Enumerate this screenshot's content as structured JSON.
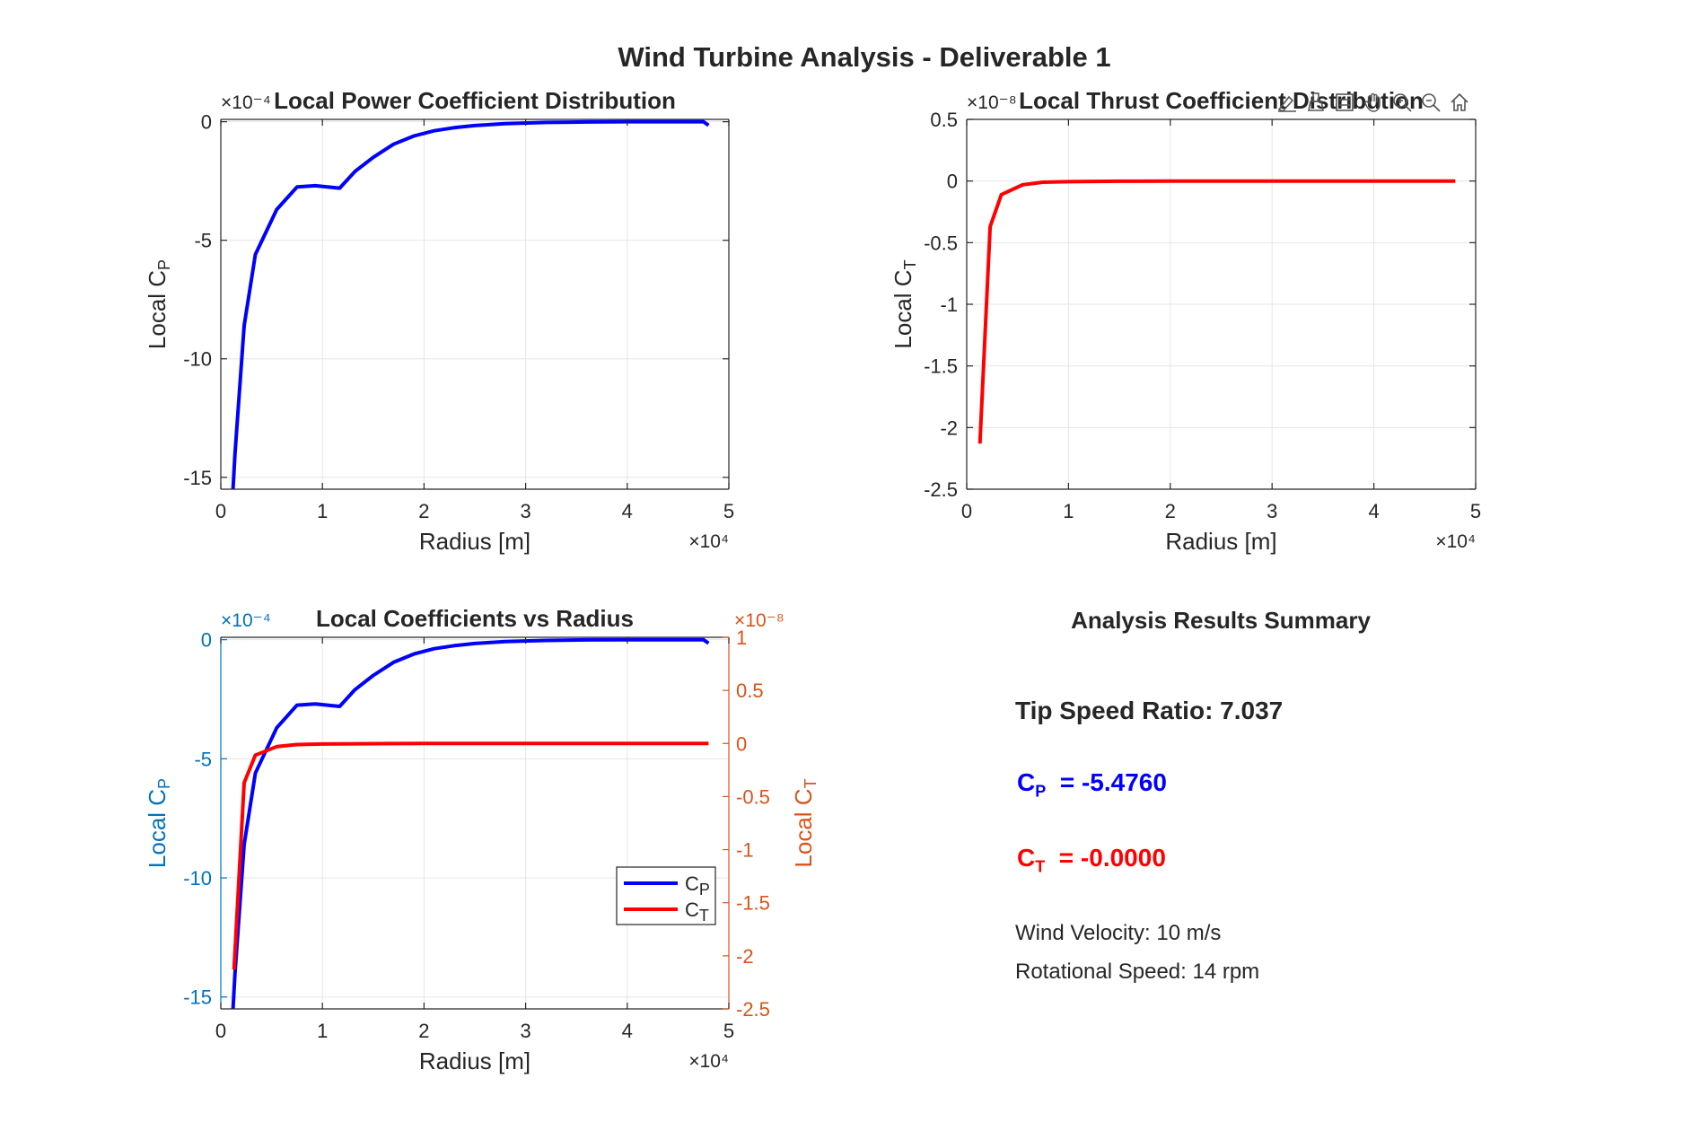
{
  "figure": {
    "suptitle": "Wind Turbine Analysis - Deliverable 1"
  },
  "toolbar": {
    "icons": [
      "data-tips-icon",
      "brush-icon",
      "legend-icon",
      "pan-icon",
      "zoom-in-icon",
      "zoom-out-icon",
      "home-icon"
    ]
  },
  "colors": {
    "cp": "#0000ff",
    "ct": "#ff0000",
    "left_axis": "#0072bd",
    "right_axis": "#d95319",
    "grid": "#e6e6e6",
    "axes": "#262626"
  },
  "chart_data": [
    {
      "type": "line",
      "title": "Local Power Coefficient Distribution",
      "xlabel": "Radius [m]",
      "ylabel": "Local  C_P",
      "x_exponent": "×10⁴",
      "y_exponent": "×10⁻⁴",
      "xlim": [
        0,
        50000
      ],
      "ylim": [
        -15.5,
        0.1
      ],
      "xticks": [
        0,
        10000,
        20000,
        30000,
        40000,
        50000
      ],
      "xtick_labels": [
        "0",
        "1",
        "2",
        "3",
        "4",
        "5"
      ],
      "yticks": [
        0,
        -5,
        -10,
        -15
      ],
      "ytick_labels": [
        "0",
        "-5",
        "-10",
        "-15"
      ],
      "grid": true,
      "series": [
        {
          "color": "#0000ff",
          "x": [
            1200,
            1400,
            2300,
            3400,
            5500,
            7500,
            9300,
            11700,
            13200,
            15000,
            17000,
            19000,
            21000,
            23000,
            25000,
            28000,
            32000,
            36000,
            40000,
            44000,
            47500,
            48000
          ],
          "y": [
            -15.5,
            -14.0,
            -8.6,
            -5.6,
            -3.7,
            -2.75,
            -2.7,
            -2.8,
            -2.1,
            -1.5,
            -0.95,
            -0.6,
            -0.38,
            -0.25,
            -0.16,
            -0.08,
            -0.03,
            -0.01,
            0.0,
            0.0,
            0.0,
            -0.15
          ]
        }
      ]
    },
    {
      "type": "line",
      "title": "Local Thrust Coefficient Distribution",
      "xlabel": "Radius [m]",
      "ylabel": "Local  C_T",
      "x_exponent": "×10⁴",
      "y_exponent": "×10⁻⁸",
      "xlim": [
        0,
        50000
      ],
      "ylim": [
        -2.5,
        0.5
      ],
      "xticks": [
        0,
        10000,
        20000,
        30000,
        40000,
        50000
      ],
      "xtick_labels": [
        "0",
        "1",
        "2",
        "3",
        "4",
        "5"
      ],
      "yticks": [
        0.5,
        0,
        -0.5,
        -1,
        -1.5,
        -2,
        -2.5
      ],
      "ytick_labels": [
        "0.5",
        "0",
        "-0.5",
        "-1",
        "-1.5",
        "-2",
        "-2.5"
      ],
      "grid": true,
      "series": [
        {
          "color": "#ff0000",
          "x": [
            1300,
            2300,
            3400,
            5500,
            7500,
            10000,
            15000,
            20000,
            30000,
            40000,
            48000
          ],
          "y": [
            -2.13,
            -0.37,
            -0.11,
            -0.03,
            -0.01,
            -0.005,
            -0.002,
            0.0,
            0.0,
            0.0,
            0.0
          ]
        }
      ]
    },
    {
      "type": "line",
      "title": "Local Coefficients vs Radius",
      "xlabel": "Radius [m]",
      "ylabel_left": "Local  C_P",
      "ylabel_right": "Local  C_T",
      "x_exponent": "×10⁴",
      "y_left_exponent": "×10⁻⁴",
      "y_right_exponent": "×10⁻⁸",
      "xlim": [
        0,
        50000
      ],
      "ylim_left": [
        -15.5,
        0.1
      ],
      "ylim_right": [
        -2.5,
        1
      ],
      "xticks": [
        0,
        10000,
        20000,
        30000,
        40000,
        50000
      ],
      "xtick_labels": [
        "0",
        "1",
        "2",
        "3",
        "4",
        "5"
      ],
      "yticks_left": [
        0,
        -5,
        -10,
        -15
      ],
      "ytick_labels_left": [
        "0",
        "-5",
        "-10",
        "-15"
      ],
      "yticks_right": [
        1,
        0.5,
        0,
        -0.5,
        -1,
        -1.5,
        -2,
        -2.5
      ],
      "ytick_labels_right": [
        "1",
        "0.5",
        "0",
        "-0.5",
        "-1",
        "-1.5",
        "-2",
        "-2.5"
      ],
      "grid": true,
      "legend": {
        "placement": "inside-right",
        "entries": [
          "C_P",
          "C_T"
        ]
      },
      "series": [
        {
          "name": "C_P",
          "axis": "left",
          "color": "#0000ff",
          "x": [
            1200,
            1400,
            2300,
            3400,
            5500,
            7500,
            9300,
            11700,
            13200,
            15000,
            17000,
            19000,
            21000,
            23000,
            25000,
            28000,
            32000,
            36000,
            40000,
            44000,
            47500,
            48000
          ],
          "y": [
            -15.5,
            -14.0,
            -8.6,
            -5.6,
            -3.7,
            -2.75,
            -2.7,
            -2.8,
            -2.1,
            -1.5,
            -0.95,
            -0.6,
            -0.38,
            -0.25,
            -0.16,
            -0.08,
            -0.03,
            -0.01,
            0.0,
            0.0,
            0.0,
            -0.15
          ]
        },
        {
          "name": "C_T",
          "axis": "right",
          "color": "#ff0000",
          "x": [
            1300,
            2300,
            3400,
            5500,
            7500,
            10000,
            15000,
            20000,
            30000,
            40000,
            48000
          ],
          "y": [
            -2.13,
            -0.37,
            -0.11,
            -0.03,
            -0.01,
            -0.005,
            -0.002,
            0.0,
            0.0,
            0.0,
            0.0
          ]
        }
      ]
    }
  ],
  "summary": {
    "title": "Analysis Results Summary",
    "tsr_text": "Tip Speed Ratio: 7.037",
    "cp_symbol": "C",
    "cp_sub": "P",
    "cp_value": "=  -5.4760",
    "ct_symbol": "C",
    "ct_sub": "T",
    "ct_value": "=  -0.0000",
    "wind_text": "Wind Velocity: 10 m/s",
    "rot_text": "Rotational Speed: 14 rpm"
  }
}
